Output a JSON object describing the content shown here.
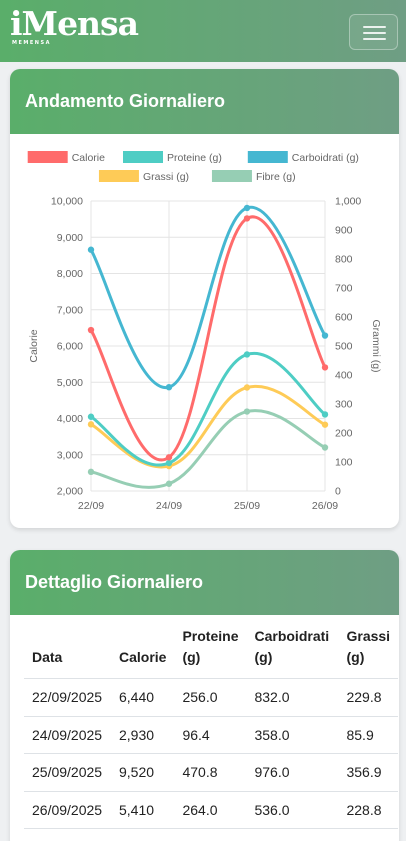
{
  "navbar": {
    "logo": "iMensa",
    "logo_sub": "MEMENSA"
  },
  "chart_card": {
    "title": "Andamento Giornaliero"
  },
  "chart_data": {
    "type": "line",
    "categories": [
      "22/09",
      "24/09",
      "25/09",
      "26/09"
    ],
    "y_left": {
      "label": "Calorie",
      "min": 2000,
      "max": 10000,
      "ticks": [
        "2,000",
        "3,000",
        "4,000",
        "5,000",
        "6,000",
        "7,000",
        "8,000",
        "9,000",
        "10,000"
      ]
    },
    "y_right": {
      "label": "Grammi (g)",
      "min": 0,
      "max": 1000,
      "ticks": [
        "0",
        "100",
        "200",
        "300",
        "400",
        "500",
        "600",
        "700",
        "800",
        "900",
        "1,000"
      ]
    },
    "legend_position": "top",
    "grid": true,
    "series": [
      {
        "name": "Calorie",
        "axis": "left",
        "color": "#ff6b6b",
        "values": [
          6440,
          2930,
          9520,
          5410
        ]
      },
      {
        "name": "Proteine (g)",
        "axis": "right",
        "color": "#4ecdc4",
        "values": [
          256.0,
          96.4,
          470.8,
          264.0
        ]
      },
      {
        "name": "Carboidrati (g)",
        "axis": "right",
        "color": "#45b7d1",
        "values": [
          832.0,
          358.0,
          976.0,
          536.0
        ]
      },
      {
        "name": "Grassi (g)",
        "axis": "right",
        "color": "#fecb57",
        "values": [
          229.8,
          85.9,
          356.9,
          228.8
        ]
      },
      {
        "name": "Fibre (g)",
        "axis": "right",
        "color": "#96ceb4",
        "values": [
          66,
          25,
          274,
          150
        ]
      }
    ]
  },
  "table_card": {
    "title": "Dettaglio Giornaliero",
    "headers": {
      "date": "Data",
      "cal": "Calorie",
      "pro_1": "Proteine",
      "pro_2": "(g)",
      "car_1": "Carboidrati",
      "car_2": "(g)",
      "gra_1": "Grassi",
      "gra_2": "(g)"
    },
    "rows": [
      {
        "date": "22/09/2025",
        "cal": "6,440",
        "pro": "256.0",
        "car": "832.0",
        "gra": "229.8"
      },
      {
        "date": "24/09/2025",
        "cal": "2,930",
        "pro": "96.4",
        "car": "358.0",
        "gra": "85.9"
      },
      {
        "date": "25/09/2025",
        "cal": "9,520",
        "pro": "470.8",
        "car": "976.0",
        "gra": "356.9"
      },
      {
        "date": "26/09/2025",
        "cal": "5,410",
        "pro": "264.0",
        "car": "536.0",
        "gra": "228.8"
      }
    ]
  }
}
